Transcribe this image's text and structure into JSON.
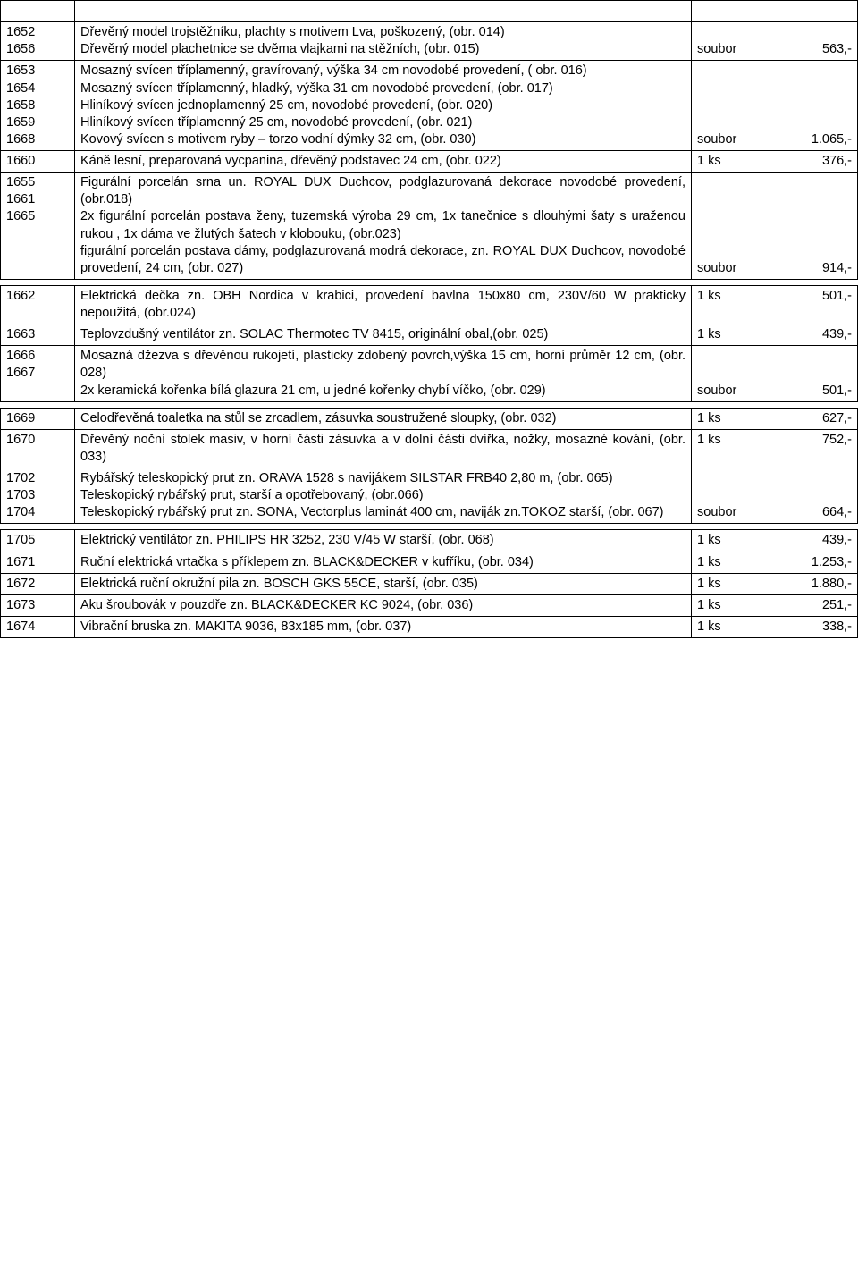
{
  "rows": [
    {
      "ids": [
        "1652",
        "1656"
      ],
      "desc": "Dřevěný model trojstěžníku, plachty s motivem Lva, poškozený, (obr. 014)\nDřevěný model plachetnice se dvěma vlajkami na stěžních, (obr. 015)",
      "unit": "soubor",
      "price": "563,-"
    },
    {
      "ids": [
        "1653",
        "1654",
        "1658",
        "1659",
        "1668"
      ],
      "desc": "Mosazný svícen tříplamenný, gravírovaný, výška 34 cm novodobé provedení, ( obr. 016)\nMosazný svícen tříplamenný, hladký, výška 31 cm novodobé provedení, (obr. 017)\nHliníkový svícen jednoplamenný  25 cm, novodobé provedení, (obr. 020)\nHliníkový svícen tříplamenný 25 cm, novodobé provedení, (obr. 021)\nKovový svícen s motivem ryby – torzo vodní dýmky 32 cm, (obr. 030)",
      "unit": "soubor",
      "price": "1.065,-"
    },
    {
      "ids": [
        "1660"
      ],
      "desc": "Káně lesní, preparovaná vycpanina, dřevěný podstavec 24 cm, (obr. 022)",
      "unit": "1 ks",
      "price": "376,-",
      "unit_align": "top",
      "price_align": "top"
    },
    {
      "ids": [
        "1655",
        "1661",
        "1665"
      ],
      "desc": "Figurální porcelán srna un. ROYAL DUX Duchcov, podglazurovaná dekorace novodobé provedení,(obr.018)\n2x figurální porcelán postava ženy, tuzemská výroba 29 cm, 1x tanečnice s dlouhými šaty s uraženou rukou , 1x dáma ve žlutých šatech v klobouku, (obr.023)\nfigurální porcelán postava dámy, podglazurovaná modrá dekorace, zn. ROYAL DUX Duchcov, novodobé provedení, 24 cm, (obr. 027)",
      "unit": "soubor",
      "price": "914,-"
    },
    {
      "spacer": true
    },
    {
      "ids": [
        "1662"
      ],
      "desc": "Elektrická dečka zn. OBH Nordica v krabici, provedení bavlna 150x80 cm, 230V/60 W prakticky nepoužitá, (obr.024)",
      "unit": "1 ks",
      "price": "501,-",
      "unit_align": "top",
      "price_align": "top"
    },
    {
      "ids": [
        "1663"
      ],
      "desc": "Teplovzdušný ventilátor zn. SOLAC Thermotec TV 8415, originální obal,(obr. 025)",
      "unit": "1 ks",
      "price": "439,-",
      "unit_align": "top",
      "price_align": "top"
    },
    {
      "ids": [
        "1666",
        "1667"
      ],
      "desc": "Mosazná džezva s dřevěnou rukojetí, plasticky zdobený povrch,výška 15 cm, horní průměr 12 cm, (obr. 028)\n2x keramická kořenka bílá glazura 21 cm, u jedné kořenky chybí víčko, (obr. 029)",
      "unit": "soubor",
      "price": "501,-"
    },
    {
      "spacer": true
    },
    {
      "ids": [
        "1669"
      ],
      "desc": "Celodřevěná toaletka na stůl se zrcadlem, zásuvka soustružené sloupky, (obr. 032)",
      "unit": "1 ks",
      "price": "627,-",
      "unit_align": "top",
      "price_align": "top"
    },
    {
      "ids": [
        "1670"
      ],
      "desc": "Dřevěný noční stolek masiv, v horní části zásuvka a v dolní části dvířka, nožky, mosazné kování, (obr. 033)",
      "unit": "1 ks",
      "price": "752,-",
      "unit_align": "top",
      "price_align": "top"
    },
    {
      "ids": [
        "1702",
        "1703",
        "1704"
      ],
      "desc": "Rybářský teleskopický prut zn. ORAVA 1528 s navijákem SILSTAR  FRB40 2,80 m, (obr. 065)\nTeleskopický rybářský prut, starší a opotřebovaný, (obr.066)\nTeleskopický rybářský prut zn. SONA, Vectorplus laminát 400 cm, naviják  zn.TOKOZ starší, (obr. 067)",
      "unit": "soubor",
      "price": "664,-"
    },
    {
      "spacer": true
    },
    {
      "ids": [
        "1705"
      ],
      "desc": "Elektrický ventilátor zn. PHILIPS HR 3252, 230 V/45 W starší, (obr. 068)",
      "unit": "1 ks",
      "price": "439,-",
      "unit_align": "top",
      "price_align": "top"
    },
    {
      "ids": [
        "1671"
      ],
      "desc": "Ruční elektrická vrtačka s příklepem zn. BLACK&DECKER v kufříku, (obr. 034)",
      "unit": "1 ks",
      "price": "1.253,-",
      "unit_align": "top",
      "price_align": "top"
    },
    {
      "ids": [
        "1672"
      ],
      "desc": "Elektrická ruční okružní pila zn. BOSCH GKS 55CE, starší, (obr. 035)",
      "unit": "1 ks",
      "price": "1.880,-",
      "unit_align": "top",
      "price_align": "top"
    },
    {
      "ids": [
        "1673"
      ],
      "desc": "Aku šroubovák v pouzdře zn. BLACK&DECKER KC 9024, (obr. 036)",
      "unit": "1 ks",
      "price": "251,-",
      "unit_align": "top",
      "price_align": "top"
    },
    {
      "ids": [
        "1674"
      ],
      "desc": "Vibrační bruska zn. MAKITA 9036, 83x185 mm, (obr. 037)",
      "unit": "1 ks",
      "price": "338,-",
      "unit_align": "top",
      "price_align": "top"
    }
  ]
}
